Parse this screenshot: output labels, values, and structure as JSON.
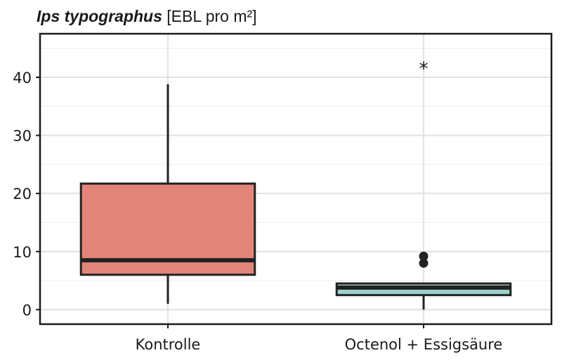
{
  "title": {
    "species": "Ips typographus",
    "unit": "[EBL pro m²]"
  },
  "chart_data": {
    "type": "box",
    "categories": [
      "Kontrolle",
      "Octenol + Essigsäure"
    ],
    "ylim": [
      -2.5,
      47.5
    ],
    "yticks": [
      0,
      10,
      20,
      30,
      40
    ],
    "grid": true,
    "legend": "none",
    "boxes": [
      {
        "category": "Kontrolle",
        "whisker_low": 1,
        "q1": 6,
        "median": 8.5,
        "q3": 21.7,
        "whisker_high": 38.8,
        "outliers": [],
        "color": "#e3847b"
      },
      {
        "category": "Octenol + Essigsäure",
        "whisker_low": 0,
        "q1": 2.5,
        "median": 3.8,
        "q3": 4.5,
        "whisker_high": 4.5,
        "outliers": [
          8,
          9.2
        ],
        "color": "#9fd0cc"
      }
    ],
    "annotations": [
      {
        "text": "*",
        "category": "Octenol + Essigsäure",
        "y": 42
      }
    ]
  }
}
